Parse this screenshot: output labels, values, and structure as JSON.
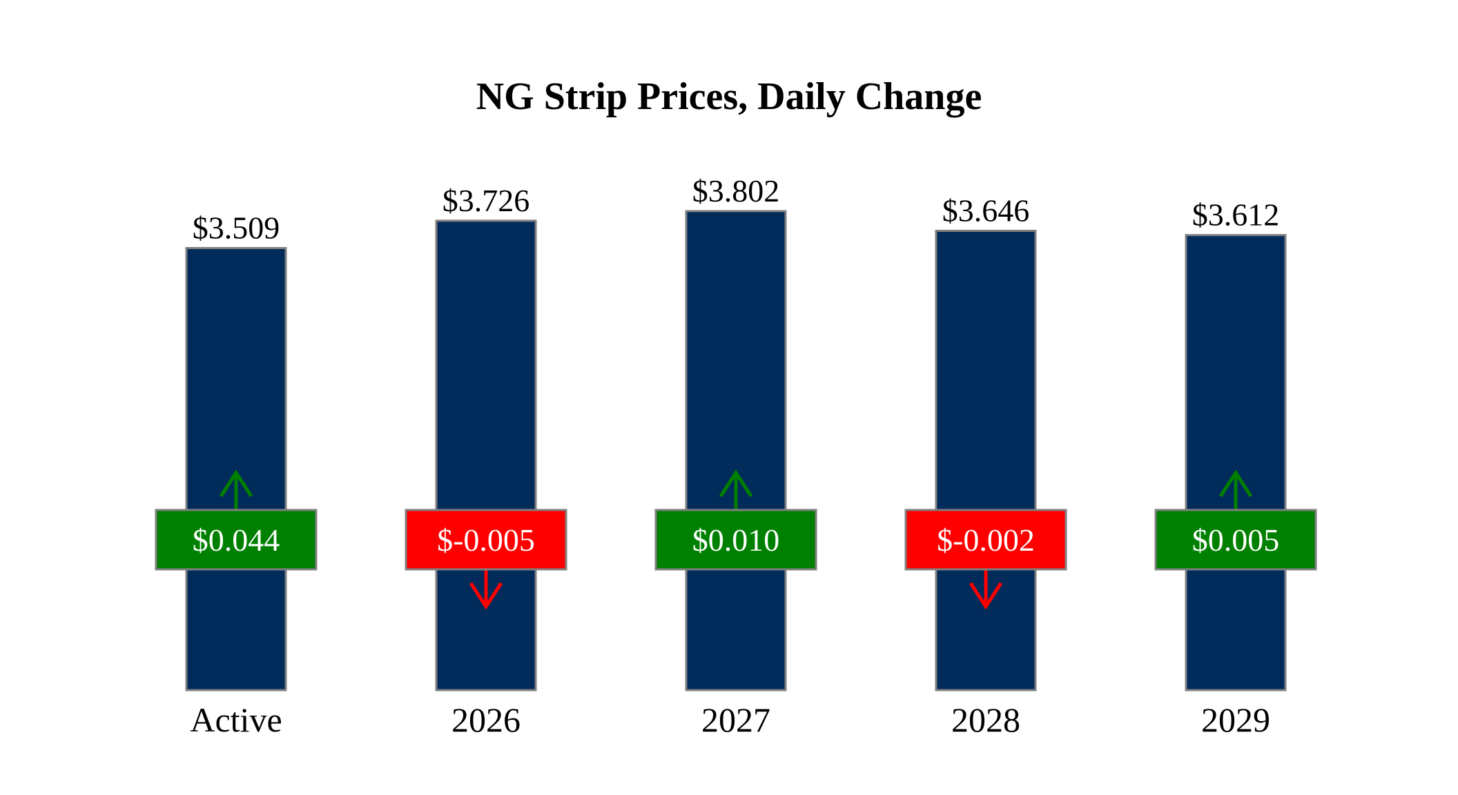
{
  "chart_data": {
    "type": "bar",
    "title": "NG Strip Prices, Daily Change",
    "categories": [
      "Active",
      "2026",
      "2027",
      "2028",
      "2029"
    ],
    "values": [
      3.509,
      3.726,
      3.802,
      3.646,
      3.612
    ],
    "price_labels": [
      "$3.509",
      "$3.726",
      "$3.802",
      "$3.646",
      "$3.612"
    ],
    "changes": [
      0.044,
      -0.005,
      0.01,
      -0.002,
      0.005
    ],
    "change_labels": [
      "$0.044",
      "$-0.005",
      "$0.010",
      "$-0.002",
      "$0.005"
    ],
    "ylim": [
      0,
      3.802
    ],
    "grid": false,
    "xlabel": "",
    "ylabel": ""
  },
  "colors": {
    "bar": "#012b5b",
    "border": "#7f7f7f",
    "up": "#008000",
    "down": "#ff0000",
    "change_text": "#ffffff"
  }
}
